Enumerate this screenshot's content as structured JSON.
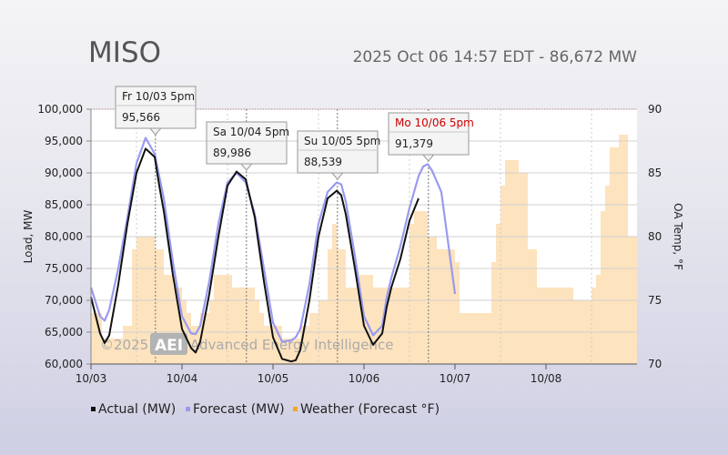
{
  "header": {
    "title": "MISO",
    "subtitle": "2025 Oct 06 14:57 EDT - 86,672 MW"
  },
  "watermark": {
    "prefix": "©2025",
    "logo_text": "AEI",
    "suffix": "Advanced Energy Intelligence"
  },
  "colors": {
    "actual": "#111111",
    "forecast": "#9a9af0",
    "weather": "#fde3be",
    "weather_legend": "#f5a623",
    "highlight_label": "#cc0000"
  },
  "chart_data": {
    "type": "line",
    "xlabel": "",
    "ylabel": "Load, MW",
    "y2label": "OA Temp, °F",
    "x_unit": "days since 10/03 00:00",
    "xlim": [
      0,
      6
    ],
    "ylim": [
      60000,
      100000
    ],
    "y2lim": [
      70,
      90
    ],
    "y_ticks": [
      60000,
      65000,
      70000,
      75000,
      80000,
      85000,
      90000,
      95000,
      100000
    ],
    "y_tick_labels": [
      "60,000",
      "65,000",
      "70,000",
      "75,000",
      "80,000",
      "85,000",
      "90,000",
      "95,000",
      "100,000"
    ],
    "y2_ticks": [
      70,
      75,
      80,
      85,
      90
    ],
    "x_ticks": [
      0,
      1,
      2,
      3,
      4,
      5
    ],
    "x_tick_labels": [
      "10/03",
      "10/04",
      "10/05",
      "10/06",
      "10/07",
      "10/08"
    ],
    "grid": true,
    "legend_position": "bottom",
    "series": [
      {
        "name": "Actual (MW)",
        "x": [
          0,
          0.1,
          0.15,
          0.2,
          0.3,
          0.4,
          0.5,
          0.6,
          0.7,
          0.75,
          0.8,
          0.9,
          1.0,
          1.1,
          1.15,
          1.2,
          1.3,
          1.4,
          1.5,
          1.6,
          1.7,
          1.75,
          1.8,
          1.9,
          2.0,
          2.1,
          2.2,
          2.25,
          2.3,
          2.4,
          2.5,
          2.6,
          2.7,
          2.75,
          2.8,
          2.9,
          3.0,
          3.1,
          3.2,
          3.25,
          3.3,
          3.4,
          3.5,
          3.6
        ],
        "y": [
          70500,
          64800,
          63300,
          64500,
          72500,
          82000,
          90000,
          93800,
          92500,
          88000,
          84000,
          74000,
          65500,
          62500,
          61800,
          63500,
          71000,
          80000,
          88000,
          90200,
          89000,
          86000,
          83000,
          73000,
          64200,
          60800,
          60400,
          60600,
          62200,
          70000,
          80000,
          86000,
          87200,
          86500,
          83500,
          75000,
          66000,
          63000,
          64800,
          69000,
          72000,
          76500,
          82500,
          86000
        ]
      },
      {
        "name": "Forecast (MW)",
        "x": [
          0,
          0.1,
          0.15,
          0.2,
          0.3,
          0.4,
          0.5,
          0.6,
          0.7,
          0.75,
          0.8,
          0.9,
          1.0,
          1.1,
          1.15,
          1.2,
          1.3,
          1.4,
          1.5,
          1.6,
          1.7,
          1.75,
          1.8,
          1.9,
          2.0,
          2.1,
          2.2,
          2.25,
          2.3,
          2.4,
          2.5,
          2.6,
          2.7,
          2.75,
          2.8,
          2.9,
          3.0,
          3.1,
          3.2,
          3.25,
          3.3,
          3.4,
          3.5,
          3.6,
          3.65,
          3.7,
          3.75,
          3.85,
          4.0
        ],
        "y": [
          72000,
          67500,
          66800,
          68500,
          75000,
          83000,
          91500,
          95500,
          93000,
          89500,
          86000,
          76000,
          67500,
          64800,
          64700,
          66000,
          73000,
          82000,
          88500,
          90000,
          88500,
          86000,
          83500,
          75000,
          66500,
          63500,
          63700,
          64200,
          65500,
          72500,
          82000,
          87000,
          88500,
          88200,
          85500,
          77000,
          67500,
          64500,
          66000,
          70500,
          73500,
          78500,
          84500,
          89500,
          91000,
          91380,
          90300,
          87000,
          71000
        ]
      },
      {
        "name": "Weather (Forecast °F)",
        "axis": "right",
        "x": [
          0,
          0.12,
          0.22,
          0.35,
          0.45,
          0.5,
          0.55,
          0.6,
          0.7,
          0.8,
          0.9,
          1.0,
          1.05,
          1.1,
          1.15,
          1.2,
          1.3,
          1.35,
          1.4,
          1.5,
          1.55,
          1.6,
          1.65,
          1.7,
          1.8,
          1.85,
          1.9,
          1.95,
          2.0,
          2.1,
          2.2,
          2.3,
          2.4,
          2.5,
          2.6,
          2.65,
          2.7,
          2.8,
          2.9,
          2.95,
          3.0,
          3.05,
          3.1,
          3.2,
          3.3,
          3.4,
          3.5,
          3.55,
          3.6,
          3.7,
          3.8,
          3.9,
          4.0,
          4.05,
          4.1,
          4.15,
          4.2,
          4.3,
          4.4,
          4.45,
          4.5,
          4.55,
          4.6,
          4.7,
          4.8,
          4.9,
          5.0,
          5.1,
          5.15,
          5.2,
          5.3,
          5.4,
          5.5,
          5.55,
          5.6,
          5.65,
          5.7,
          5.75,
          5.8,
          5.85,
          5.9,
          5.95,
          6.0
        ],
        "y": [
          74,
          72,
          72,
          73,
          79,
          80,
          80,
          80,
          79,
          77,
          76,
          75,
          74,
          73,
          73,
          74,
          75,
          77,
          77,
          77,
          76,
          76,
          76,
          76,
          75,
          74,
          73,
          73,
          73,
          72,
          72,
          73,
          74,
          75,
          79,
          81,
          79,
          76,
          76,
          77,
          77,
          77,
          76,
          76,
          76,
          76,
          81,
          82,
          82,
          80,
          79,
          79,
          78,
          74,
          74,
          74,
          74,
          74,
          78,
          81,
          84,
          86,
          86,
          85,
          79,
          76,
          76,
          76,
          76,
          76,
          75,
          75,
          76,
          77,
          82,
          84,
          87,
          87,
          88,
          88,
          80,
          80,
          77
        ]
      }
    ],
    "tooltips": [
      {
        "label": "Fr 10/03 5pm",
        "value": "95,566",
        "x": 0.708,
        "y": 95566,
        "highlight": false
      },
      {
        "label": "Sa 10/04 5pm",
        "value": "89,986",
        "x": 1.708,
        "y": 89986,
        "highlight": false
      },
      {
        "label": "Su 10/05 5pm",
        "value": "88,539",
        "x": 2.708,
        "y": 88539,
        "highlight": false
      },
      {
        "label": "Mo 10/06 5pm",
        "value": "91,379",
        "x": 3.708,
        "y": 91379,
        "highlight": true
      }
    ]
  }
}
